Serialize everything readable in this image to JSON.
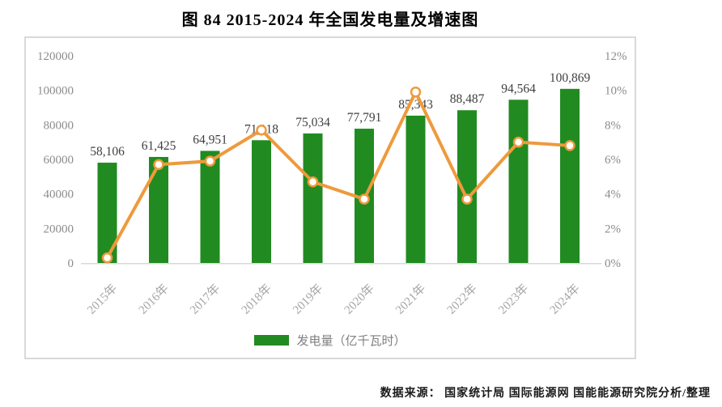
{
  "title": "图  84 2015-2024 年全国发电量及增速图",
  "source": "数据来源：  国家统计局   国际能源网   国能能源研究院分析/整理",
  "legend": {
    "bar_label": "发电量（亿千瓦时）"
  },
  "colors": {
    "bar": "#218B21",
    "line": "#EE9A3C",
    "marker_fill": "#FFFFFF",
    "axis_text": "#8C8C8C",
    "category_text": "#A6A6A6",
    "data_label": "#3F3F3F",
    "frame": "#D9D9D9",
    "axis_line": "#D9D9D9"
  },
  "chart_data": {
    "type": "combo-bar-line",
    "title": "图  84 2015-2024 年全国发电量及增速图",
    "categories": [
      "2015年",
      "2016年",
      "2017年",
      "2018年",
      "2019年",
      "2020年",
      "2021年",
      "2022年",
      "2023年",
      "2024年"
    ],
    "series": [
      {
        "name": "发电量（亿千瓦时）",
        "type": "bar",
        "axis": "left",
        "values": [
          58106,
          61425,
          64951,
          71118,
          75034,
          77791,
          85343,
          88487,
          94564,
          100869
        ],
        "value_labels": [
          "58,106",
          "61,425",
          "64,951",
          "71,118",
          "75,034",
          "77,791",
          "85,343",
          "88,487",
          "94,564",
          "100,869"
        ]
      },
      {
        "name": "增速",
        "type": "line",
        "axis": "right",
        "values_percent": [
          0.3,
          5.7,
          5.9,
          7.7,
          4.7,
          3.7,
          9.9,
          3.7,
          7.0,
          6.8
        ]
      }
    ],
    "left_axis": {
      "min": 0,
      "max": 120000,
      "step": 20000,
      "tick_values": [
        0,
        20000,
        40000,
        60000,
        80000,
        100000,
        120000
      ],
      "tick_labels": [
        "0",
        "20000",
        "40000",
        "60000",
        "80000",
        "100000",
        "120000"
      ]
    },
    "right_axis": {
      "min": 0,
      "max": 12,
      "step": 2,
      "tick_values": [
        0,
        2,
        4,
        6,
        8,
        10,
        12
      ],
      "tick_labels": [
        "0%",
        "2%",
        "4%",
        "6%",
        "8%",
        "10%",
        "12%"
      ]
    },
    "grid": "off",
    "legend_position": "bottom-center"
  }
}
